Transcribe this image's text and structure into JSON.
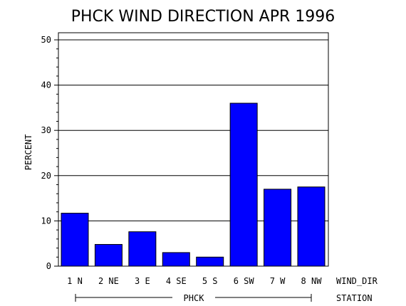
{
  "chart_data": {
    "type": "bar",
    "title": "PHCK WIND DIRECTION APR 1996",
    "ylabel": "PERCENT",
    "xlabel": "WIND_DIR",
    "group_axis_label": "STATION",
    "group_name": "PHCK",
    "categories": [
      "1 N",
      "2 NE",
      "3 E",
      "4 SE",
      "5 S",
      "6 SW",
      "7 W",
      "8 NW"
    ],
    "values": [
      11.7,
      4.8,
      7.6,
      3.0,
      2.0,
      36.0,
      17.0,
      17.5
    ],
    "ylim": [
      0,
      50
    ],
    "yticks": [
      0,
      10,
      20,
      30,
      40,
      50
    ],
    "grid": true,
    "bar_color": "#0000ff"
  }
}
